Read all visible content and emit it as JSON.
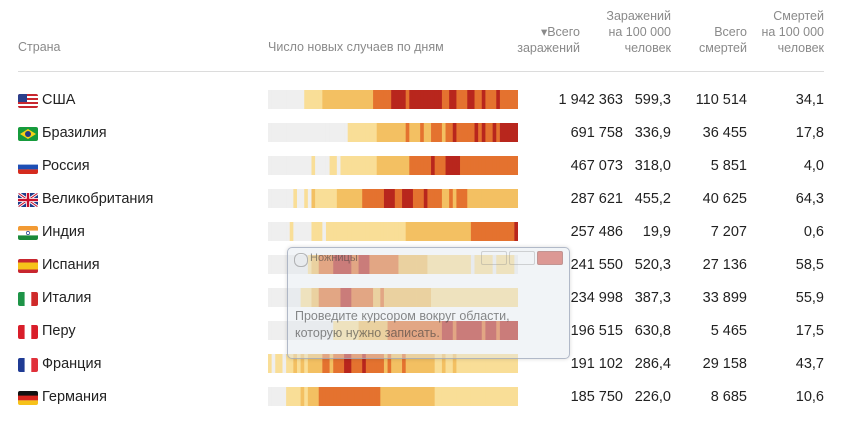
{
  "header": {
    "country": "Страна",
    "chart": "Число новых случаев по дням",
    "total_cases": [
      "▾Всего",
      "заражений"
    ],
    "cases_per100k": [
      "Заражений",
      "на 100 000",
      "человек"
    ],
    "total_deaths": [
      "Всего",
      "смертей"
    ],
    "deaths_per100k": [
      "Смертей",
      "на 100 000",
      "человек"
    ]
  },
  "rows": [
    {
      "country": "США",
      "flag": "us",
      "total": "1 942 363",
      "per100": "599,3",
      "deaths": "110 514",
      "dper100": "34,1",
      "heat": "000000000011111222222222222223333344443444444444334433344334333433333"
    },
    {
      "country": "Бразилия",
      "flag": "br",
      "total": "691 758",
      "per100": "336,9",
      "deaths": "36 455",
      "dper100": "17,8",
      "heat": "000000000000000000000011111111222222223222322333233433333434334344444"
    },
    {
      "country": "Россия",
      "flag": "ru",
      "total": "467 073",
      "per100": "318,0",
      "deaths": "5 851",
      "dper100": "4,0",
      "heat": "000000000000100001101111111111222222222333333433344443333333333333333"
    },
    {
      "country": "Великобритания",
      "flag": "gb",
      "total": "287 621",
      "per100": "455,2",
      "deaths": "40 625",
      "dper100": "64,3",
      "heat": "000000010010211111122222223333334443344433343333223233322222222222222"
    },
    {
      "country": "Индия",
      "flag": "in",
      "total": "257 486",
      "per100": "19,9",
      "deaths": "7 207",
      "dper100": "0,6",
      "heat": "000000100000111011111111111111111111112222222222222222223333333333334"
    },
    {
      "country": "Испания",
      "flag": "es",
      "total": "241 550",
      "per100": "520,3",
      "deaths": "27 136",
      "dper100": "58,5",
      "heat": "000000000001223333444443344433333333222222221111111111110111110111110"
    },
    {
      "country": "Италия",
      "flag": "it",
      "total": "234 998",
      "per100": "387,3",
      "deaths": "33 899",
      "dper100": "55,9",
      "heat": "000000000111223333334443333332232222222222222111111111111111111111111"
    },
    {
      "country": "Перу",
      "flag": "pe",
      "total": "196 515",
      "per100": "630,8",
      "deaths": "5 465",
      "dper100": "17,5",
      "heat": "000000000000000000111111122222222333333333333333444344444443444344444"
    },
    {
      "country": "Франция",
      "flag": "fr",
      "total": "191 102",
      "per100": "286,4",
      "deaths": "29 158",
      "dper100": "43,7",
      "heat": "101101121212222332333443334333332322232222222211211211111111111111111"
    },
    {
      "country": "Германия",
      "flag": "de",
      "total": "185 750",
      "per100": "226,0",
      "deaths": "8 685",
      "dper100": "10,6",
      "heat": "000001111212223333333333333333322222222222222211111111111111111111111"
    }
  ],
  "snip_overlay": {
    "title": "Ножницы",
    "message": "Проведите курсором вокруг области, которую нужно записать."
  },
  "heat_colors": [
    "#efefef",
    "#f9de97",
    "#f3c062",
    "#e4722f",
    "#b8261d"
  ]
}
